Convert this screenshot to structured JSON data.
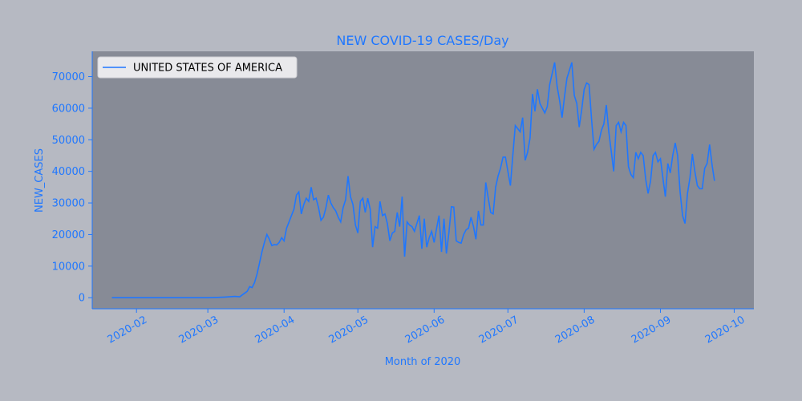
{
  "chart_data": {
    "type": "line",
    "title": "NEW COVID-19 CASES/Day",
    "xlabel": "Month of 2020",
    "ylabel": "NEW_CASES",
    "ylim": [
      -3500,
      78000
    ],
    "xlim": [
      "2020-01-14",
      "2020-10-09"
    ],
    "x_ticks": [
      "2020-02",
      "2020-03",
      "2020-04",
      "2020-05",
      "2020-06",
      "2020-07",
      "2020-08",
      "2020-09",
      "2020-10"
    ],
    "y_ticks": [
      0,
      10000,
      20000,
      30000,
      40000,
      50000,
      60000,
      70000
    ],
    "legend_position": "top-left",
    "colors": {
      "series": "#1f77ff",
      "plot_bg": "#878b96",
      "fig_bg": "#b6b9c2",
      "text": "#1f77ff"
    },
    "series": [
      {
        "name": "UNITED STATES OF AMERICA",
        "points": [
          [
            "2020-01-22",
            0
          ],
          [
            "2020-02-01",
            0
          ],
          [
            "2020-02-15",
            0
          ],
          [
            "2020-03-01",
            0
          ],
          [
            "2020-03-05",
            100
          ],
          [
            "2020-03-08",
            200
          ],
          [
            "2020-03-12",
            400
          ],
          [
            "2020-03-14",
            300
          ],
          [
            "2020-03-15",
            900
          ],
          [
            "2020-03-17",
            2000
          ],
          [
            "2020-03-18",
            3500
          ],
          [
            "2020-03-19",
            3200
          ],
          [
            "2020-03-20",
            4800
          ],
          [
            "2020-03-21",
            7500
          ],
          [
            "2020-03-22",
            11000
          ],
          [
            "2020-03-23",
            14500
          ],
          [
            "2020-03-24",
            17500
          ],
          [
            "2020-03-25",
            20000
          ],
          [
            "2020-03-26",
            18500
          ],
          [
            "2020-03-27",
            16500
          ],
          [
            "2020-03-28",
            16800
          ],
          [
            "2020-03-29",
            16700
          ],
          [
            "2020-03-30",
            17500
          ],
          [
            "2020-03-31",
            19000
          ],
          [
            "2020-04-01",
            18000
          ],
          [
            "2020-04-02",
            22000
          ],
          [
            "2020-04-03",
            24000
          ],
          [
            "2020-04-04",
            26000
          ],
          [
            "2020-04-05",
            28000
          ],
          [
            "2020-04-06",
            32500
          ],
          [
            "2020-04-07",
            33500
          ],
          [
            "2020-04-08",
            26500
          ],
          [
            "2020-04-09",
            29500
          ],
          [
            "2020-04-10",
            31500
          ],
          [
            "2020-04-11",
            30500
          ],
          [
            "2020-04-12",
            35000
          ],
          [
            "2020-04-13",
            31000
          ],
          [
            "2020-04-14",
            31500
          ],
          [
            "2020-04-15",
            28500
          ],
          [
            "2020-04-16",
            24500
          ],
          [
            "2020-04-17",
            25500
          ],
          [
            "2020-04-18",
            28500
          ],
          [
            "2020-04-19",
            32500
          ],
          [
            "2020-04-20",
            30000
          ],
          [
            "2020-04-21",
            28500
          ],
          [
            "2020-04-22",
            27500
          ],
          [
            "2020-04-23",
            25500
          ],
          [
            "2020-04-24",
            24000
          ],
          [
            "2020-04-25",
            28500
          ],
          [
            "2020-04-26",
            31000
          ],
          [
            "2020-04-27",
            38500
          ],
          [
            "2020-04-28",
            32000
          ],
          [
            "2020-04-29",
            29500
          ],
          [
            "2020-04-30",
            23000
          ],
          [
            "2020-05-01",
            20500
          ],
          [
            "2020-05-02",
            30500
          ],
          [
            "2020-05-03",
            31500
          ],
          [
            "2020-05-04",
            27000
          ],
          [
            "2020-05-05",
            31500
          ],
          [
            "2020-05-06",
            28000
          ],
          [
            "2020-05-07",
            16000
          ],
          [
            "2020-05-08",
            22500
          ],
          [
            "2020-05-09",
            22000
          ],
          [
            "2020-05-10",
            30500
          ],
          [
            "2020-05-11",
            26000
          ],
          [
            "2020-05-12",
            26500
          ],
          [
            "2020-05-13",
            23500
          ],
          [
            "2020-05-14",
            18000
          ],
          [
            "2020-05-15",
            20500
          ],
          [
            "2020-05-16",
            21000
          ],
          [
            "2020-05-17",
            27000
          ],
          [
            "2020-05-18",
            22500
          ],
          [
            "2020-05-19",
            32000
          ],
          [
            "2020-05-20",
            13000
          ],
          [
            "2020-05-21",
            24000
          ],
          [
            "2020-05-22",
            23000
          ],
          [
            "2020-05-23",
            22500
          ],
          [
            "2020-05-24",
            21000
          ],
          [
            "2020-05-25",
            23500
          ],
          [
            "2020-05-26",
            26000
          ],
          [
            "2020-05-27",
            15500
          ],
          [
            "2020-05-28",
            25000
          ],
          [
            "2020-05-29",
            16000
          ],
          [
            "2020-05-30",
            19000
          ],
          [
            "2020-05-31",
            21000
          ],
          [
            "2020-06-01",
            17500
          ],
          [
            "2020-06-02",
            22000
          ],
          [
            "2020-06-03",
            26000
          ],
          [
            "2020-06-04",
            14500
          ],
          [
            "2020-06-05",
            25000
          ],
          [
            "2020-06-06",
            14000
          ],
          [
            "2020-06-07",
            20500
          ],
          [
            "2020-06-08",
            28800
          ],
          [
            "2020-06-09",
            28700
          ],
          [
            "2020-06-10",
            18000
          ],
          [
            "2020-06-11",
            17500
          ],
          [
            "2020-06-12",
            17300
          ],
          [
            "2020-06-13",
            20000
          ],
          [
            "2020-06-14",
            21500
          ],
          [
            "2020-06-15",
            22000
          ],
          [
            "2020-06-16",
            25500
          ],
          [
            "2020-06-17",
            22500
          ],
          [
            "2020-06-18",
            18500
          ],
          [
            "2020-06-19",
            27500
          ],
          [
            "2020-06-20",
            23000
          ],
          [
            "2020-06-21",
            23000
          ],
          [
            "2020-06-22",
            36500
          ],
          [
            "2020-06-23",
            31500
          ],
          [
            "2020-06-24",
            27000
          ],
          [
            "2020-06-25",
            26500
          ],
          [
            "2020-06-26",
            35000
          ],
          [
            "2020-06-27",
            38500
          ],
          [
            "2020-06-28",
            41000
          ],
          [
            "2020-06-29",
            44500
          ],
          [
            "2020-06-30",
            44500
          ],
          [
            "2020-07-01",
            40000
          ],
          [
            "2020-07-02",
            35500
          ],
          [
            "2020-07-03",
            45000
          ],
          [
            "2020-07-04",
            54500
          ],
          [
            "2020-07-05",
            53500
          ],
          [
            "2020-07-06",
            52500
          ],
          [
            "2020-07-07",
            57000
          ],
          [
            "2020-07-08",
            43500
          ],
          [
            "2020-07-09",
            46000
          ],
          [
            "2020-07-10",
            50500
          ],
          [
            "2020-07-11",
            64500
          ],
          [
            "2020-07-12",
            59000
          ],
          [
            "2020-07-13",
            66000
          ],
          [
            "2020-07-14",
            61500
          ],
          [
            "2020-07-15",
            60000
          ],
          [
            "2020-07-16",
            58500
          ],
          [
            "2020-07-17",
            60500
          ],
          [
            "2020-07-18",
            67500
          ],
          [
            "2020-07-19",
            71000
          ],
          [
            "2020-07-20",
            74500
          ],
          [
            "2020-07-21",
            67000
          ],
          [
            "2020-07-22",
            62500
          ],
          [
            "2020-07-23",
            57000
          ],
          [
            "2020-07-24",
            63500
          ],
          [
            "2020-07-25",
            69500
          ],
          [
            "2020-07-26",
            72000
          ],
          [
            "2020-07-27",
            74500
          ],
          [
            "2020-07-28",
            64000
          ],
          [
            "2020-07-29",
            61500
          ],
          [
            "2020-07-30",
            54000
          ],
          [
            "2020-07-31",
            59500
          ],
          [
            "2020-08-01",
            66000
          ],
          [
            "2020-08-02",
            68000
          ],
          [
            "2020-08-03",
            67500
          ],
          [
            "2020-08-04",
            56500
          ],
          [
            "2020-08-05",
            47000
          ],
          [
            "2020-08-06",
            48500
          ],
          [
            "2020-08-07",
            49500
          ],
          [
            "2020-08-08",
            53000
          ],
          [
            "2020-08-09",
            55000
          ],
          [
            "2020-08-10",
            61000
          ],
          [
            "2020-08-11",
            52500
          ],
          [
            "2020-08-12",
            46500
          ],
          [
            "2020-08-13",
            40000
          ],
          [
            "2020-08-14",
            54500
          ],
          [
            "2020-08-15",
            55500
          ],
          [
            "2020-08-16",
            52500
          ],
          [
            "2020-08-17",
            55500
          ],
          [
            "2020-08-18",
            54500
          ],
          [
            "2020-08-19",
            41500
          ],
          [
            "2020-08-20",
            39000
          ],
          [
            "2020-08-21",
            38000
          ],
          [
            "2020-08-22",
            46000
          ],
          [
            "2020-08-23",
            44000
          ],
          [
            "2020-08-24",
            46000
          ],
          [
            "2020-08-25",
            45000
          ],
          [
            "2020-08-26",
            37500
          ],
          [
            "2020-08-27",
            33000
          ],
          [
            "2020-08-28",
            37000
          ],
          [
            "2020-08-29",
            45000
          ],
          [
            "2020-08-30",
            46000
          ],
          [
            "2020-08-31",
            43000
          ],
          [
            "2020-09-01",
            44000
          ],
          [
            "2020-09-02",
            38000
          ],
          [
            "2020-09-03",
            32000
          ],
          [
            "2020-09-04",
            42500
          ],
          [
            "2020-09-05",
            39500
          ],
          [
            "2020-09-06",
            45000
          ],
          [
            "2020-09-07",
            49000
          ],
          [
            "2020-09-08",
            45000
          ],
          [
            "2020-09-09",
            33500
          ],
          [
            "2020-09-10",
            26000
          ],
          [
            "2020-09-11",
            23500
          ],
          [
            "2020-09-12",
            33000
          ],
          [
            "2020-09-13",
            38000
          ],
          [
            "2020-09-14",
            45500
          ],
          [
            "2020-09-15",
            40000
          ],
          [
            "2020-09-16",
            35500
          ],
          [
            "2020-09-17",
            34500
          ],
          [
            "2020-09-18",
            34500
          ],
          [
            "2020-09-19",
            41000
          ],
          [
            "2020-09-20",
            42500
          ],
          [
            "2020-09-21",
            48500
          ],
          [
            "2020-09-22",
            42000
          ],
          [
            "2020-09-23",
            37000
          ]
        ]
      }
    ]
  }
}
